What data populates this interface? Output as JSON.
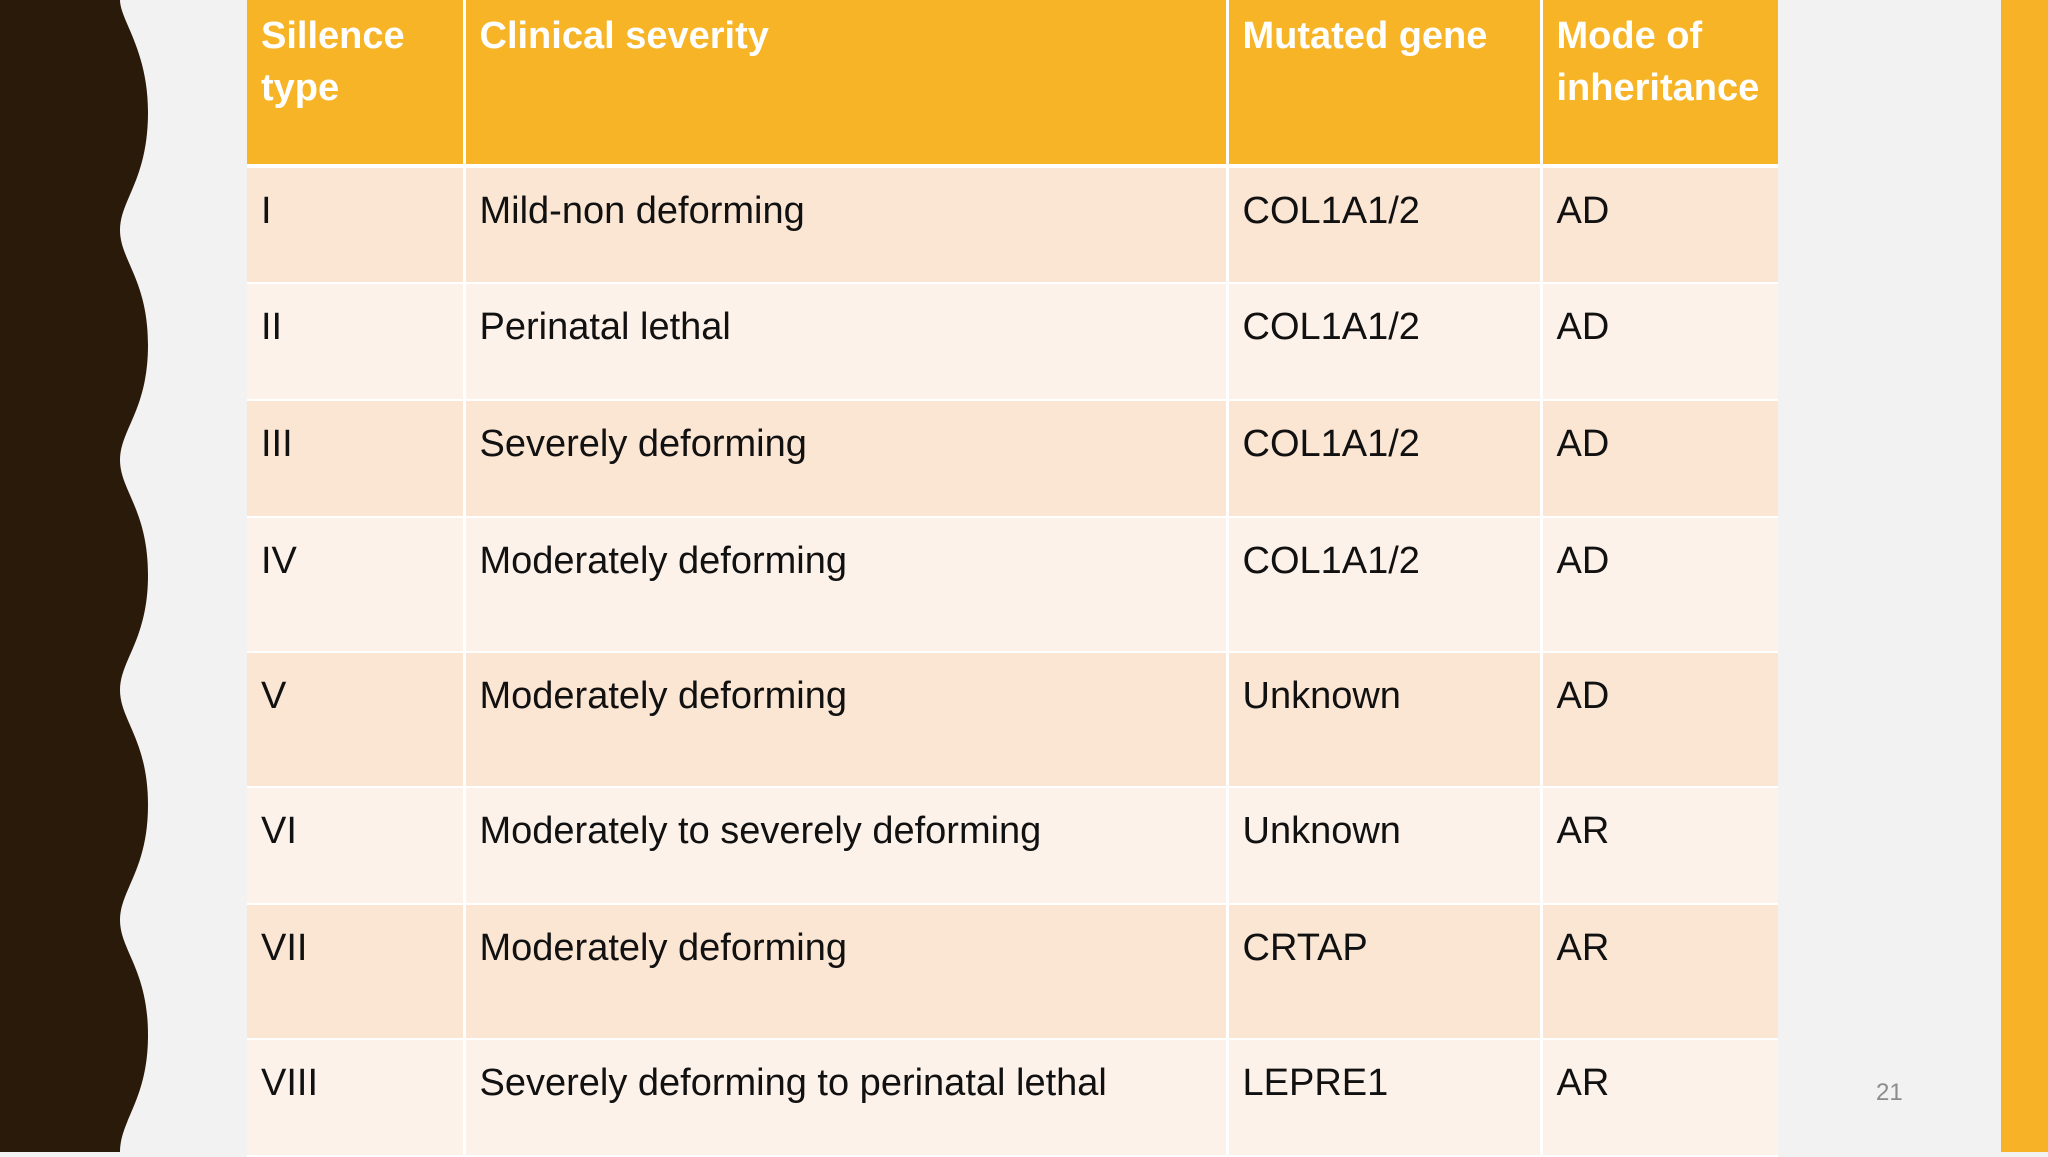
{
  "colors": {
    "background": "#F3F2F2",
    "wavy_edge": "#2A1A0A",
    "accent": "#F7B227",
    "header_fill": "#F7B427",
    "row_odd": "#FBE5D3",
    "row_even": "#FDF2EA"
  },
  "table": {
    "headers": [
      "Sillence type",
      "Clinical severity",
      "Mutated gene",
      "Mode of inheritance"
    ],
    "rows": [
      [
        "I",
        "Mild-non deforming",
        "COL1A1/2",
        "AD"
      ],
      [
        "II",
        "Perinatal lethal",
        "COL1A1/2",
        "AD"
      ],
      [
        "III",
        "Severely deforming",
        "COL1A1/2",
        "AD"
      ],
      [
        "IV",
        "Moderately deforming",
        "COL1A1/2",
        "AD"
      ],
      [
        "V",
        "Moderately deforming",
        "Unknown",
        "AD"
      ],
      [
        "VI",
        "Moderately to severely deforming",
        "Unknown",
        "AR"
      ],
      [
        "VII",
        "Moderately deforming",
        "CRTAP",
        "AR"
      ],
      [
        "VIII",
        "Severely deforming to perinatal lethal",
        "LEPRE1",
        "AR"
      ]
    ]
  },
  "page_number": "21"
}
